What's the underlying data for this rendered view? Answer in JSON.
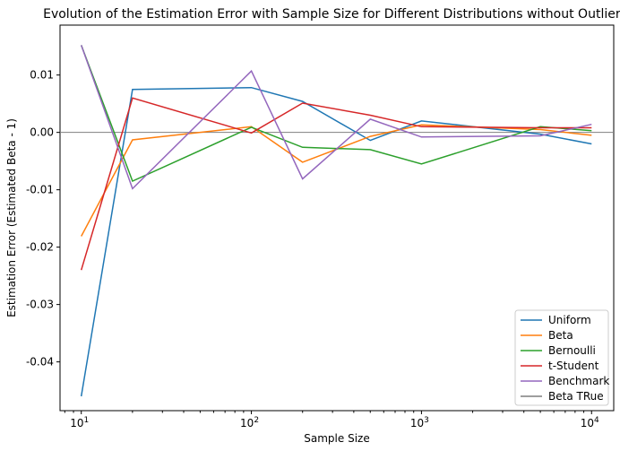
{
  "chart_data": {
    "type": "line",
    "title": "Evolution of the Estimation Error with Sample Size for Different Distributions without Outliers",
    "xlabel": "Sample Size",
    "ylabel": "Estimation Error (Estimated Beta - 1)",
    "xscale": "log",
    "xlim": [
      7.5,
      13500
    ],
    "ylim": [
      -0.0485,
      0.0187
    ],
    "xticks": [
      {
        "value": 10,
        "base": "10",
        "exp": "1"
      },
      {
        "value": 100,
        "base": "10",
        "exp": "2"
      },
      {
        "value": 1000,
        "base": "10",
        "exp": "3"
      },
      {
        "value": 10000,
        "base": "10",
        "exp": "4"
      }
    ],
    "yticks": [
      {
        "value": 0.01,
        "label": "0.01"
      },
      {
        "value": 0.0,
        "label": "0.00"
      },
      {
        "value": -0.01,
        "label": "-0.01"
      },
      {
        "value": -0.02,
        "label": "-0.02"
      },
      {
        "value": -0.03,
        "label": "-0.03"
      },
      {
        "value": -0.04,
        "label": "-0.04"
      }
    ],
    "x": [
      10,
      20,
      100,
      200,
      500,
      1000,
      5000,
      10000
    ],
    "series": [
      {
        "name": "Uniform",
        "color": "#1f77b4",
        "values": [
          -0.046,
          0.0075,
          0.0078,
          0.0054,
          -0.0014,
          0.002,
          -0.0003,
          -0.002
        ]
      },
      {
        "name": "Beta",
        "color": "#ff7f0e",
        "values": [
          -0.0181,
          -0.0013,
          0.001,
          -0.0052,
          -0.0007,
          0.0013,
          0.0005,
          -0.0005
        ]
      },
      {
        "name": "Bernoulli",
        "color": "#2ca02c",
        "values": [
          0.0152,
          -0.0085,
          0.0009,
          -0.0026,
          -0.003,
          -0.0055,
          0.001,
          0.0003
        ]
      },
      {
        "name": "t-Student",
        "color": "#d62728",
        "values": [
          -0.024,
          0.006,
          -0.0001,
          0.0051,
          0.003,
          0.001,
          0.0008,
          0.0008
        ]
      },
      {
        "name": "Benchmark",
        "color": "#9467bd",
        "values": [
          0.0152,
          -0.0098,
          0.0107,
          -0.0081,
          0.0023,
          -0.0008,
          -0.0006,
          0.0014
        ]
      }
    ],
    "reference_line": {
      "name": "Beta TRue",
      "color": "#7f7f7f",
      "value": 0.0
    },
    "grid": false,
    "legend": "lower-right"
  }
}
